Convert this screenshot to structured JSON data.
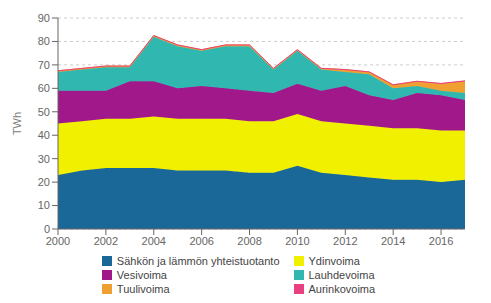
{
  "chart_data": {
    "type": "area",
    "stacked": true,
    "grid": "y",
    "legend": "bottom",
    "ylabel": "TWh",
    "x": [
      2000,
      2001,
      2002,
      2003,
      2004,
      2005,
      2006,
      2007,
      2008,
      2009,
      2010,
      2011,
      2012,
      2013,
      2014,
      2015,
      2016,
      2017
    ],
    "xlim": [
      2000,
      2017
    ],
    "xticks": [
      2000,
      2002,
      2004,
      2006,
      2008,
      2010,
      2012,
      2014,
      2016
    ],
    "ylim": [
      0,
      90
    ],
    "yticks": [
      0,
      10,
      20,
      30,
      40,
      50,
      60,
      70,
      80,
      90
    ],
    "series": [
      {
        "name": "Sähkön ja lämmön yhteistuotanto",
        "color": "#1a6898",
        "values": [
          23,
          25,
          26,
          26,
          26,
          25,
          25,
          25,
          24,
          24,
          27,
          24,
          23,
          22,
          21,
          21,
          20,
          21
        ]
      },
      {
        "name": "Ydinvoima",
        "color": "#f0f000",
        "values": [
          22,
          21,
          21,
          21,
          22,
          22,
          22,
          22,
          22,
          22,
          22,
          22,
          22,
          22,
          22,
          22,
          22,
          21
        ]
      },
      {
        "name": "Vesivoima",
        "color": "#a0188a",
        "values": [
          14,
          13,
          12,
          16,
          15,
          13,
          14,
          13,
          13,
          12,
          13,
          13,
          16,
          13,
          12,
          15,
          15,
          13
        ]
      },
      {
        "name": "Lauhdevoima",
        "color": "#30b8b0",
        "values": [
          8,
          9,
          10,
          6,
          19,
          18,
          15,
          18,
          19,
          10,
          14,
          9,
          6,
          9,
          5,
          3,
          2,
          3
        ]
      },
      {
        "name": "Tuulivoima",
        "color": "#f0a030",
        "values": [
          0.5,
          0.5,
          0.5,
          0.5,
          0.5,
          0.5,
          0.5,
          0.5,
          0.5,
          0.5,
          0.5,
          0.5,
          1,
          1,
          1.5,
          2,
          3,
          5
        ]
      },
      {
        "name": "Aurinkovoima",
        "color": "#e84080",
        "values": [
          0,
          0,
          0,
          0,
          0,
          0,
          0,
          0,
          0,
          0,
          0,
          0,
          0,
          0,
          0,
          0,
          0.1,
          0.2
        ]
      }
    ]
  }
}
